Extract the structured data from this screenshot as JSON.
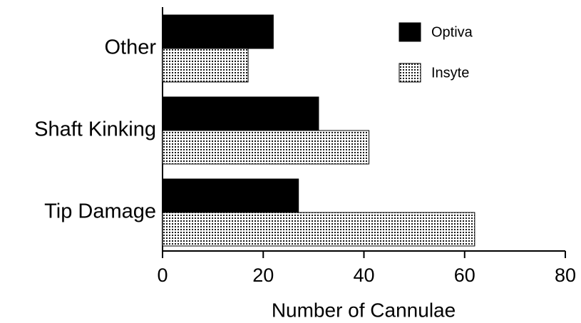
{
  "chart_data": {
    "type": "barh",
    "xlabel": "Number of Cannulae",
    "categories": [
      "Other",
      "Shaft Kinking",
      "Tip Damage"
    ],
    "series": [
      {
        "name": "Optiva",
        "color": "#000000",
        "values": [
          22,
          31,
          27
        ]
      },
      {
        "name": "Insyte",
        "color": "#000000",
        "pattern": "dots",
        "values": [
          17,
          41,
          62
        ]
      }
    ],
    "xlim": [
      0,
      80
    ],
    "xticks": [
      0,
      20,
      40,
      60,
      80
    ],
    "grid": false,
    "legend": "upper right"
  }
}
